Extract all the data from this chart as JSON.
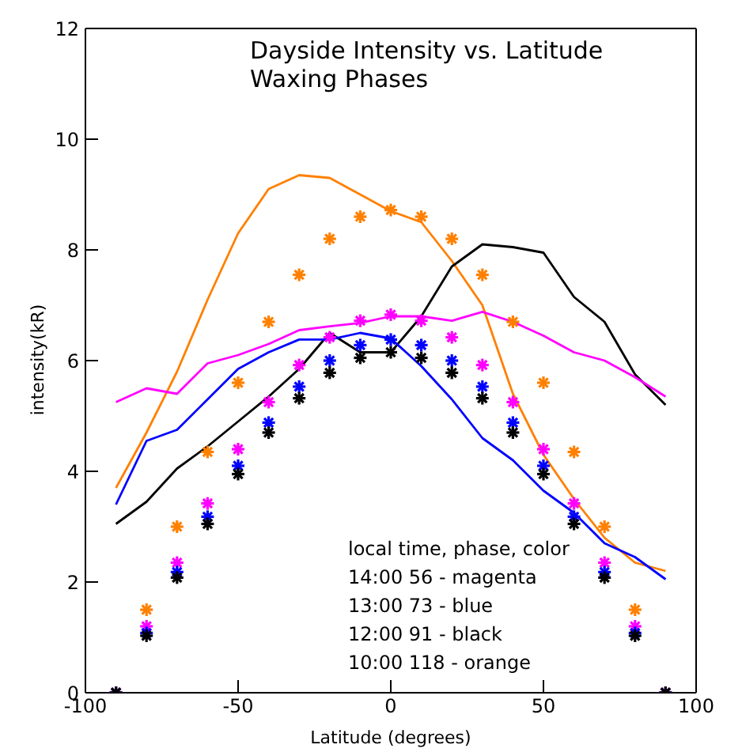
{
  "chart_data": {
    "type": "line",
    "title": "Dayside Intensity vs. Latitude",
    "subtitle": "Waxing Phases",
    "xlabel": "Latitude (degrees)",
    "ylabel": "intensity(kR)",
    "annotations": [
      "local time, phase, color",
      "14:00 56 - magenta",
      "13:00 73 - blue",
      "12:00 91 - black",
      "10:00 118 - orange"
    ],
    "x": [
      -90,
      -80,
      -70,
      -60,
      -50,
      -40,
      -30,
      -20,
      -10,
      0,
      10,
      20,
      30,
      40,
      50,
      60,
      70,
      80,
      90
    ],
    "xlim": [
      -100,
      100
    ],
    "xticks": [
      -100,
      -50,
      0,
      50,
      100
    ],
    "ylim": [
      0,
      12
    ],
    "yticks": [
      0,
      2,
      4,
      6,
      8,
      10,
      12
    ],
    "grid": false,
    "line_style": "solid",
    "series": [
      {
        "marker": "none",
        "color": "#ff8000",
        "values": [
          3.7,
          4.7,
          5.8,
          7.1,
          8.3,
          9.1,
          9.35,
          9.3,
          9.0,
          8.7,
          8.5,
          7.8,
          7.0,
          5.4,
          4.3,
          3.5,
          2.8,
          2.35,
          2.2
        ]
      },
      {
        "marker": "none",
        "color": "#000000",
        "values": [
          3.05,
          3.45,
          4.05,
          4.45,
          4.9,
          5.35,
          5.85,
          6.5,
          6.15,
          6.15,
          6.8,
          7.7,
          8.1,
          8.05,
          7.95,
          7.15,
          6.7,
          5.75,
          5.2
        ]
      },
      {
        "marker": "none",
        "color": "#0000ff",
        "values": [
          3.4,
          4.55,
          4.75,
          5.3,
          5.85,
          6.15,
          6.38,
          6.38,
          6.5,
          6.4,
          5.9,
          5.3,
          4.6,
          4.2,
          3.65,
          3.25,
          2.7,
          2.45,
          2.05
        ]
      },
      {
        "marker": "none",
        "color": "#ff00ff",
        "values": [
          5.25,
          5.5,
          5.4,
          5.95,
          6.1,
          6.3,
          6.55,
          6.62,
          6.68,
          6.8,
          6.8,
          6.72,
          6.88,
          6.7,
          6.45,
          6.15,
          6.0,
          5.7,
          5.35
        ]
      },
      {
        "type": "scatter",
        "marker": "cross",
        "color": "#ff8000",
        "values": [
          0,
          1.5,
          3.0,
          4.35,
          5.6,
          6.7,
          7.55,
          8.2,
          8.6,
          8.72,
          8.6,
          8.2,
          7.55,
          6.7,
          5.6,
          4.35,
          3.0,
          1.5,
          0
        ]
      },
      {
        "type": "scatter",
        "marker": "cross",
        "color": "#ff00ff",
        "values": [
          0,
          1.2,
          2.35,
          3.42,
          4.4,
          5.25,
          5.92,
          6.42,
          6.72,
          6.83,
          6.72,
          6.42,
          5.92,
          5.25,
          4.4,
          3.42,
          2.35,
          1.2,
          0
        ]
      },
      {
        "type": "scatter",
        "marker": "cross",
        "color": "#0000ff",
        "values": [
          0,
          1.08,
          2.18,
          3.18,
          4.1,
          4.88,
          5.53,
          6.0,
          6.28,
          6.38,
          6.28,
          6.0,
          5.53,
          4.88,
          4.1,
          3.18,
          2.18,
          1.08,
          0
        ]
      },
      {
        "type": "scatter",
        "marker": "cross",
        "color": "#000000",
        "values": [
          0,
          1.03,
          2.08,
          3.05,
          3.95,
          4.7,
          5.32,
          5.78,
          6.05,
          6.15,
          6.05,
          5.78,
          5.32,
          4.7,
          3.95,
          3.05,
          2.08,
          1.03,
          0
        ]
      }
    ]
  }
}
